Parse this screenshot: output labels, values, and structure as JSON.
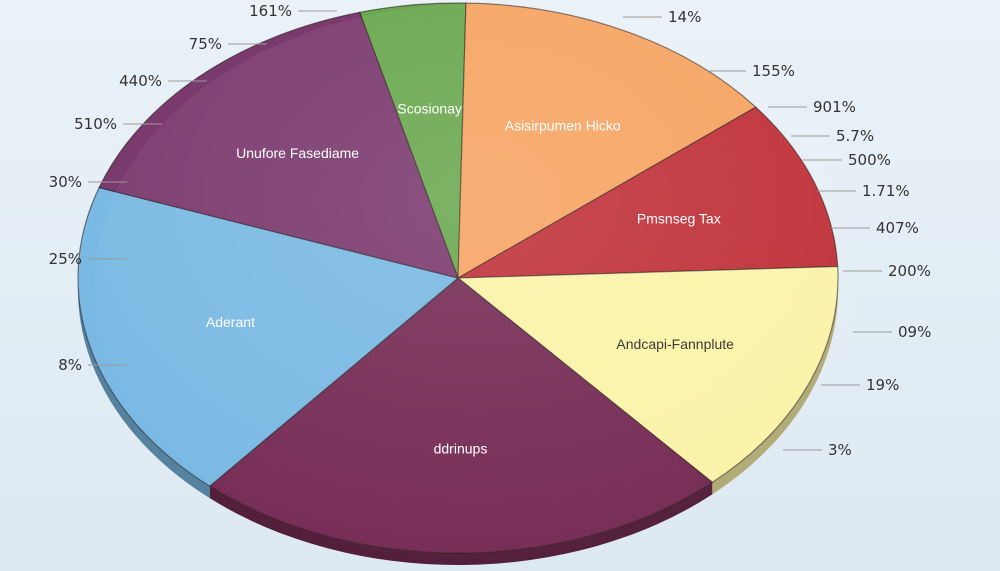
{
  "chart_data": {
    "type": "pie",
    "title": "",
    "legend": "none",
    "slices": [
      {
        "label": "Scosionay",
        "color": "#6aa84f",
        "value": 4.5
      },
      {
        "label": "Asisirpumen Hicko",
        "color": "#f6a463",
        "value": 14
      },
      {
        "label": "Pmsnseg Tax",
        "color": "#c0323a",
        "value": 10
      },
      {
        "label": "Andcapi-Fannplute",
        "color": "#fbf3a8",
        "value": 14
      },
      {
        "label": "ddrinups",
        "color": "#762c55",
        "value": 23
      },
      {
        "label": "Aderant",
        "color": "#7ab9e3",
        "value": 19
      },
      {
        "label": "Unufore Fasediame",
        "color": "#7b3a6e",
        "value": 15.5
      }
    ],
    "callouts": [
      {
        "text": "161%",
        "side": "left"
      },
      {
        "text": "75%",
        "side": "left"
      },
      {
        "text": "440%",
        "side": "left"
      },
      {
        "text": "510%",
        "side": "left"
      },
      {
        "text": "30%",
        "side": "left"
      },
      {
        "text": "25%",
        "side": "left"
      },
      {
        "text": "8%",
        "side": "left"
      },
      {
        "text": "14%",
        "side": "right"
      },
      {
        "text": "155%",
        "side": "right"
      },
      {
        "text": "901%",
        "side": "right"
      },
      {
        "text": "5.7%",
        "side": "right"
      },
      {
        "text": "500%",
        "side": "right"
      },
      {
        "text": "1.71%",
        "side": "right"
      },
      {
        "text": "407%",
        "side": "right"
      },
      {
        "text": "200%",
        "side": "right"
      },
      {
        "text": "09%",
        "side": "right"
      },
      {
        "text": "19%",
        "side": "right"
      },
      {
        "text": "3%",
        "side": "right"
      }
    ]
  }
}
